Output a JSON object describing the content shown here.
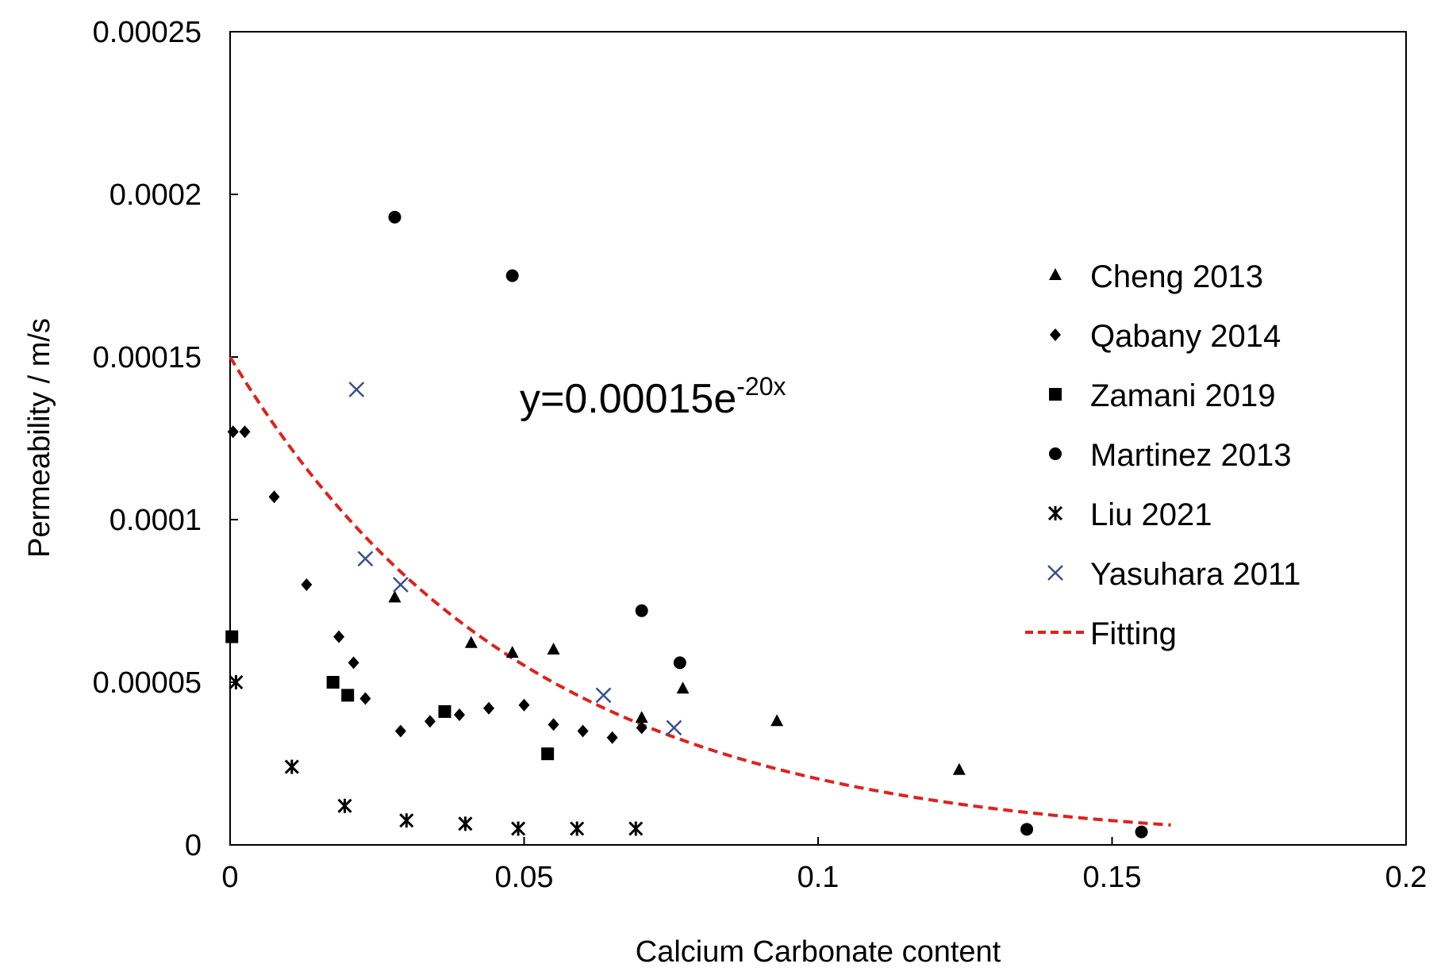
{
  "chart_data": {
    "type": "scatter",
    "title": "",
    "xlabel": "Calcium Carbonate content",
    "ylabel": "Permeability / m/s",
    "xlim": [
      0,
      0.2
    ],
    "ylim": [
      0,
      0.00025
    ],
    "x_ticks": [
      {
        "value": 0,
        "label": "0"
      },
      {
        "value": 0.05,
        "label": "0.05"
      },
      {
        "value": 0.1,
        "label": "0.1"
      },
      {
        "value": 0.15,
        "label": "0.15"
      },
      {
        "value": 0.2,
        "label": "0.2"
      }
    ],
    "y_ticks": [
      {
        "value": 0,
        "label": "0"
      },
      {
        "value": 5e-05,
        "label": "0.00005"
      },
      {
        "value": 0.0001,
        "label": "0.0001"
      },
      {
        "value": 0.00015,
        "label": "0.00015"
      },
      {
        "value": 0.0002,
        "label": "0.0002"
      },
      {
        "value": 0.00025,
        "label": "0.00025"
      }
    ],
    "grid": false,
    "legend_position": "right",
    "annotation": {
      "base": "y=0.00015e",
      "superscript": "-20x"
    },
    "series": [
      {
        "name": "Cheng 2013",
        "marker": "triangle",
        "color": "#000000",
        "points": [
          [
            0.028,
            7.6e-05
          ],
          [
            0.041,
            6.2e-05
          ],
          [
            0.048,
            5.9e-05
          ],
          [
            0.055,
            6e-05
          ],
          [
            0.07,
            3.9e-05
          ],
          [
            0.077,
            4.8e-05
          ],
          [
            0.093,
            3.8e-05
          ],
          [
            0.124,
            2.3e-05
          ]
        ]
      },
      {
        "name": "Qabany 2014",
        "marker": "diamond",
        "color": "#000000",
        "points": [
          [
            0.0005,
            0.000127
          ],
          [
            0.0025,
            0.000127
          ],
          [
            0.0075,
            0.000107
          ],
          [
            0.013,
            8e-05
          ],
          [
            0.0185,
            6.4e-05
          ],
          [
            0.021,
            5.6e-05
          ],
          [
            0.023,
            4.5e-05
          ],
          [
            0.029,
            3.5e-05
          ],
          [
            0.034,
            3.8e-05
          ],
          [
            0.039,
            4e-05
          ],
          [
            0.044,
            4.2e-05
          ],
          [
            0.05,
            4.3e-05
          ],
          [
            0.055,
            3.7e-05
          ],
          [
            0.06,
            3.5e-05
          ],
          [
            0.065,
            3.3e-05
          ],
          [
            0.07,
            3.6e-05
          ]
        ]
      },
      {
        "name": "Zamani 2019",
        "marker": "square",
        "color": "#000000",
        "points": [
          [
            0.0003,
            6.4e-05
          ],
          [
            0.0175,
            5e-05
          ],
          [
            0.02,
            4.6e-05
          ],
          [
            0.0365,
            4.1e-05
          ],
          [
            0.054,
            2.8e-05
          ]
        ]
      },
      {
        "name": "Martinez 2013",
        "marker": "circle",
        "color": "#000000",
        "points": [
          [
            0.028,
            0.000193
          ],
          [
            0.048,
            0.000175
          ],
          [
            0.07,
            7.2e-05
          ],
          [
            0.0765,
            5.6e-05
          ],
          [
            0.1355,
            4.8e-06
          ],
          [
            0.155,
            4e-06
          ]
        ]
      },
      {
        "name": "Liu 2021",
        "marker": "asterisk",
        "color": "#000000",
        "points": [
          [
            0.001,
            5e-05
          ],
          [
            0.0105,
            2.4e-05
          ],
          [
            0.0195,
            1.2e-05
          ],
          [
            0.03,
            7.5e-06
          ],
          [
            0.04,
            6.5e-06
          ],
          [
            0.049,
            5e-06
          ],
          [
            0.059,
            5e-06
          ],
          [
            0.069,
            5e-06
          ]
        ]
      },
      {
        "name": "Yasuhara 2011",
        "marker": "x",
        "color": "#3b4f8c",
        "points": [
          [
            0.0215,
            0.00014
          ],
          [
            0.023,
            8.8e-05
          ],
          [
            0.029,
            8e-05
          ],
          [
            0.0635,
            4.6e-05
          ],
          [
            0.0755,
            3.6e-05
          ]
        ]
      },
      {
        "name": "Fitting",
        "marker": "dashed-line",
        "color": "#e0211b",
        "function": {
          "a": 0.00015,
          "b": -20,
          "x_min": 0,
          "x_max": 0.16
        }
      }
    ]
  }
}
